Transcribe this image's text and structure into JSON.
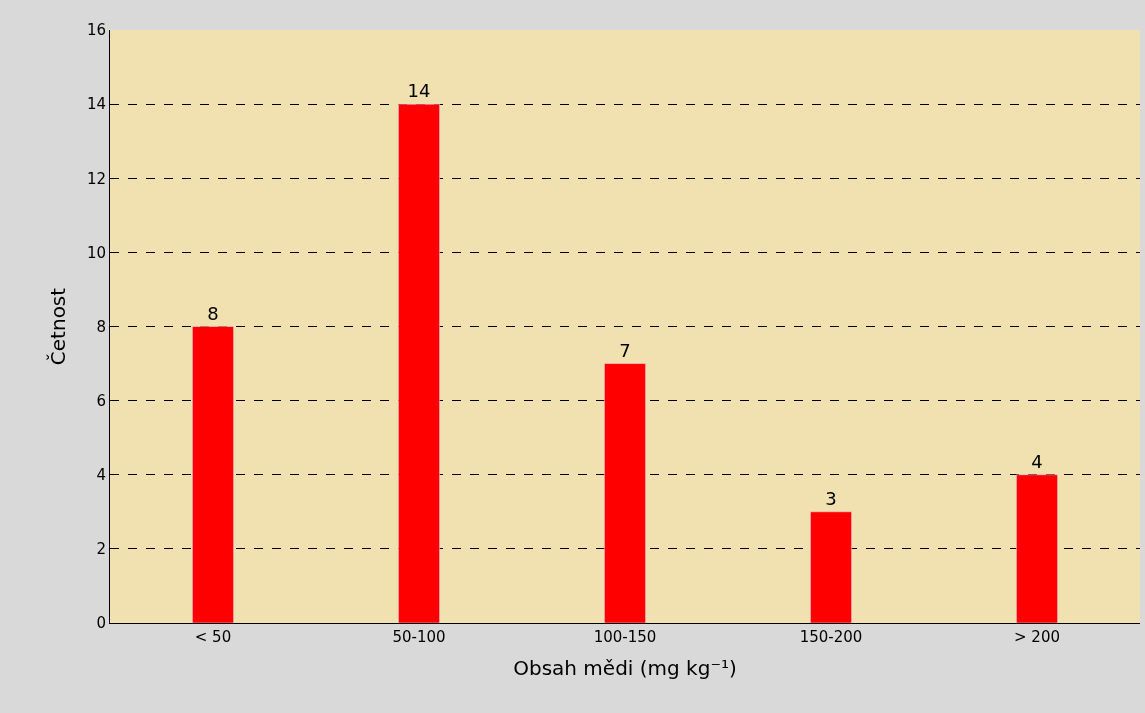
{
  "chart_data": {
    "type": "bar",
    "xlabel": "Obsah mědi (mg kg⁻¹)",
    "ylabel": "Četnost",
    "categories": [
      "< 50",
      "50-100",
      "100-150",
      "150-200",
      "> 200"
    ],
    "values": [
      8,
      14,
      7,
      3,
      4
    ],
    "color": "#ff0000",
    "ylim": [
      0,
      16
    ],
    "yticks": [
      0,
      2,
      4,
      6,
      8,
      10,
      12,
      14,
      16
    ],
    "grid": "y",
    "data_labels": true,
    "legend": false
  }
}
